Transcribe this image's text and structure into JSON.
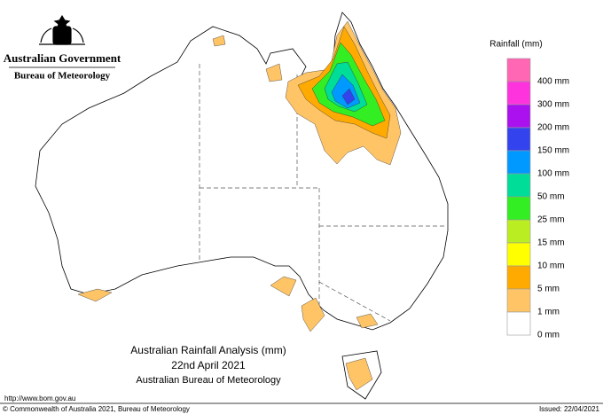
{
  "header": {
    "government": "Australian Government",
    "bureau": "Bureau of Meteorology"
  },
  "legend": {
    "title": "Rainfall (mm)",
    "items": [
      {
        "label": "400 mm",
        "color": "#ff66b3"
      },
      {
        "label": "300 mm",
        "color": "#ff33dd"
      },
      {
        "label": "200 mm",
        "color": "#aa11ee"
      },
      {
        "label": "150 mm",
        "color": "#3344ee"
      },
      {
        "label": "100 mm",
        "color": "#0099ff"
      },
      {
        "label": "50 mm",
        "color": "#00dd99"
      },
      {
        "label": "25 mm",
        "color": "#33ee22"
      },
      {
        "label": "15 mm",
        "color": "#bbee22"
      },
      {
        "label": "10 mm",
        "color": "#ffff00"
      },
      {
        "label": "5 mm",
        "color": "#ffaa00"
      },
      {
        "label": "1 mm",
        "color": "#ffc466"
      },
      {
        "label": "0 mm",
        "color": "#ffffff"
      }
    ]
  },
  "map": {
    "title": "Australian Rainfall Analysis (mm)",
    "date": "22nd April 2021",
    "source": "Australian Bureau of Meteorology"
  },
  "footer": {
    "url": "http://www.bom.gov.au",
    "copyright": "© Commonwealth of Australia 2021, Bureau of Meteorology",
    "issued": "Issued: 22/04/2021"
  }
}
